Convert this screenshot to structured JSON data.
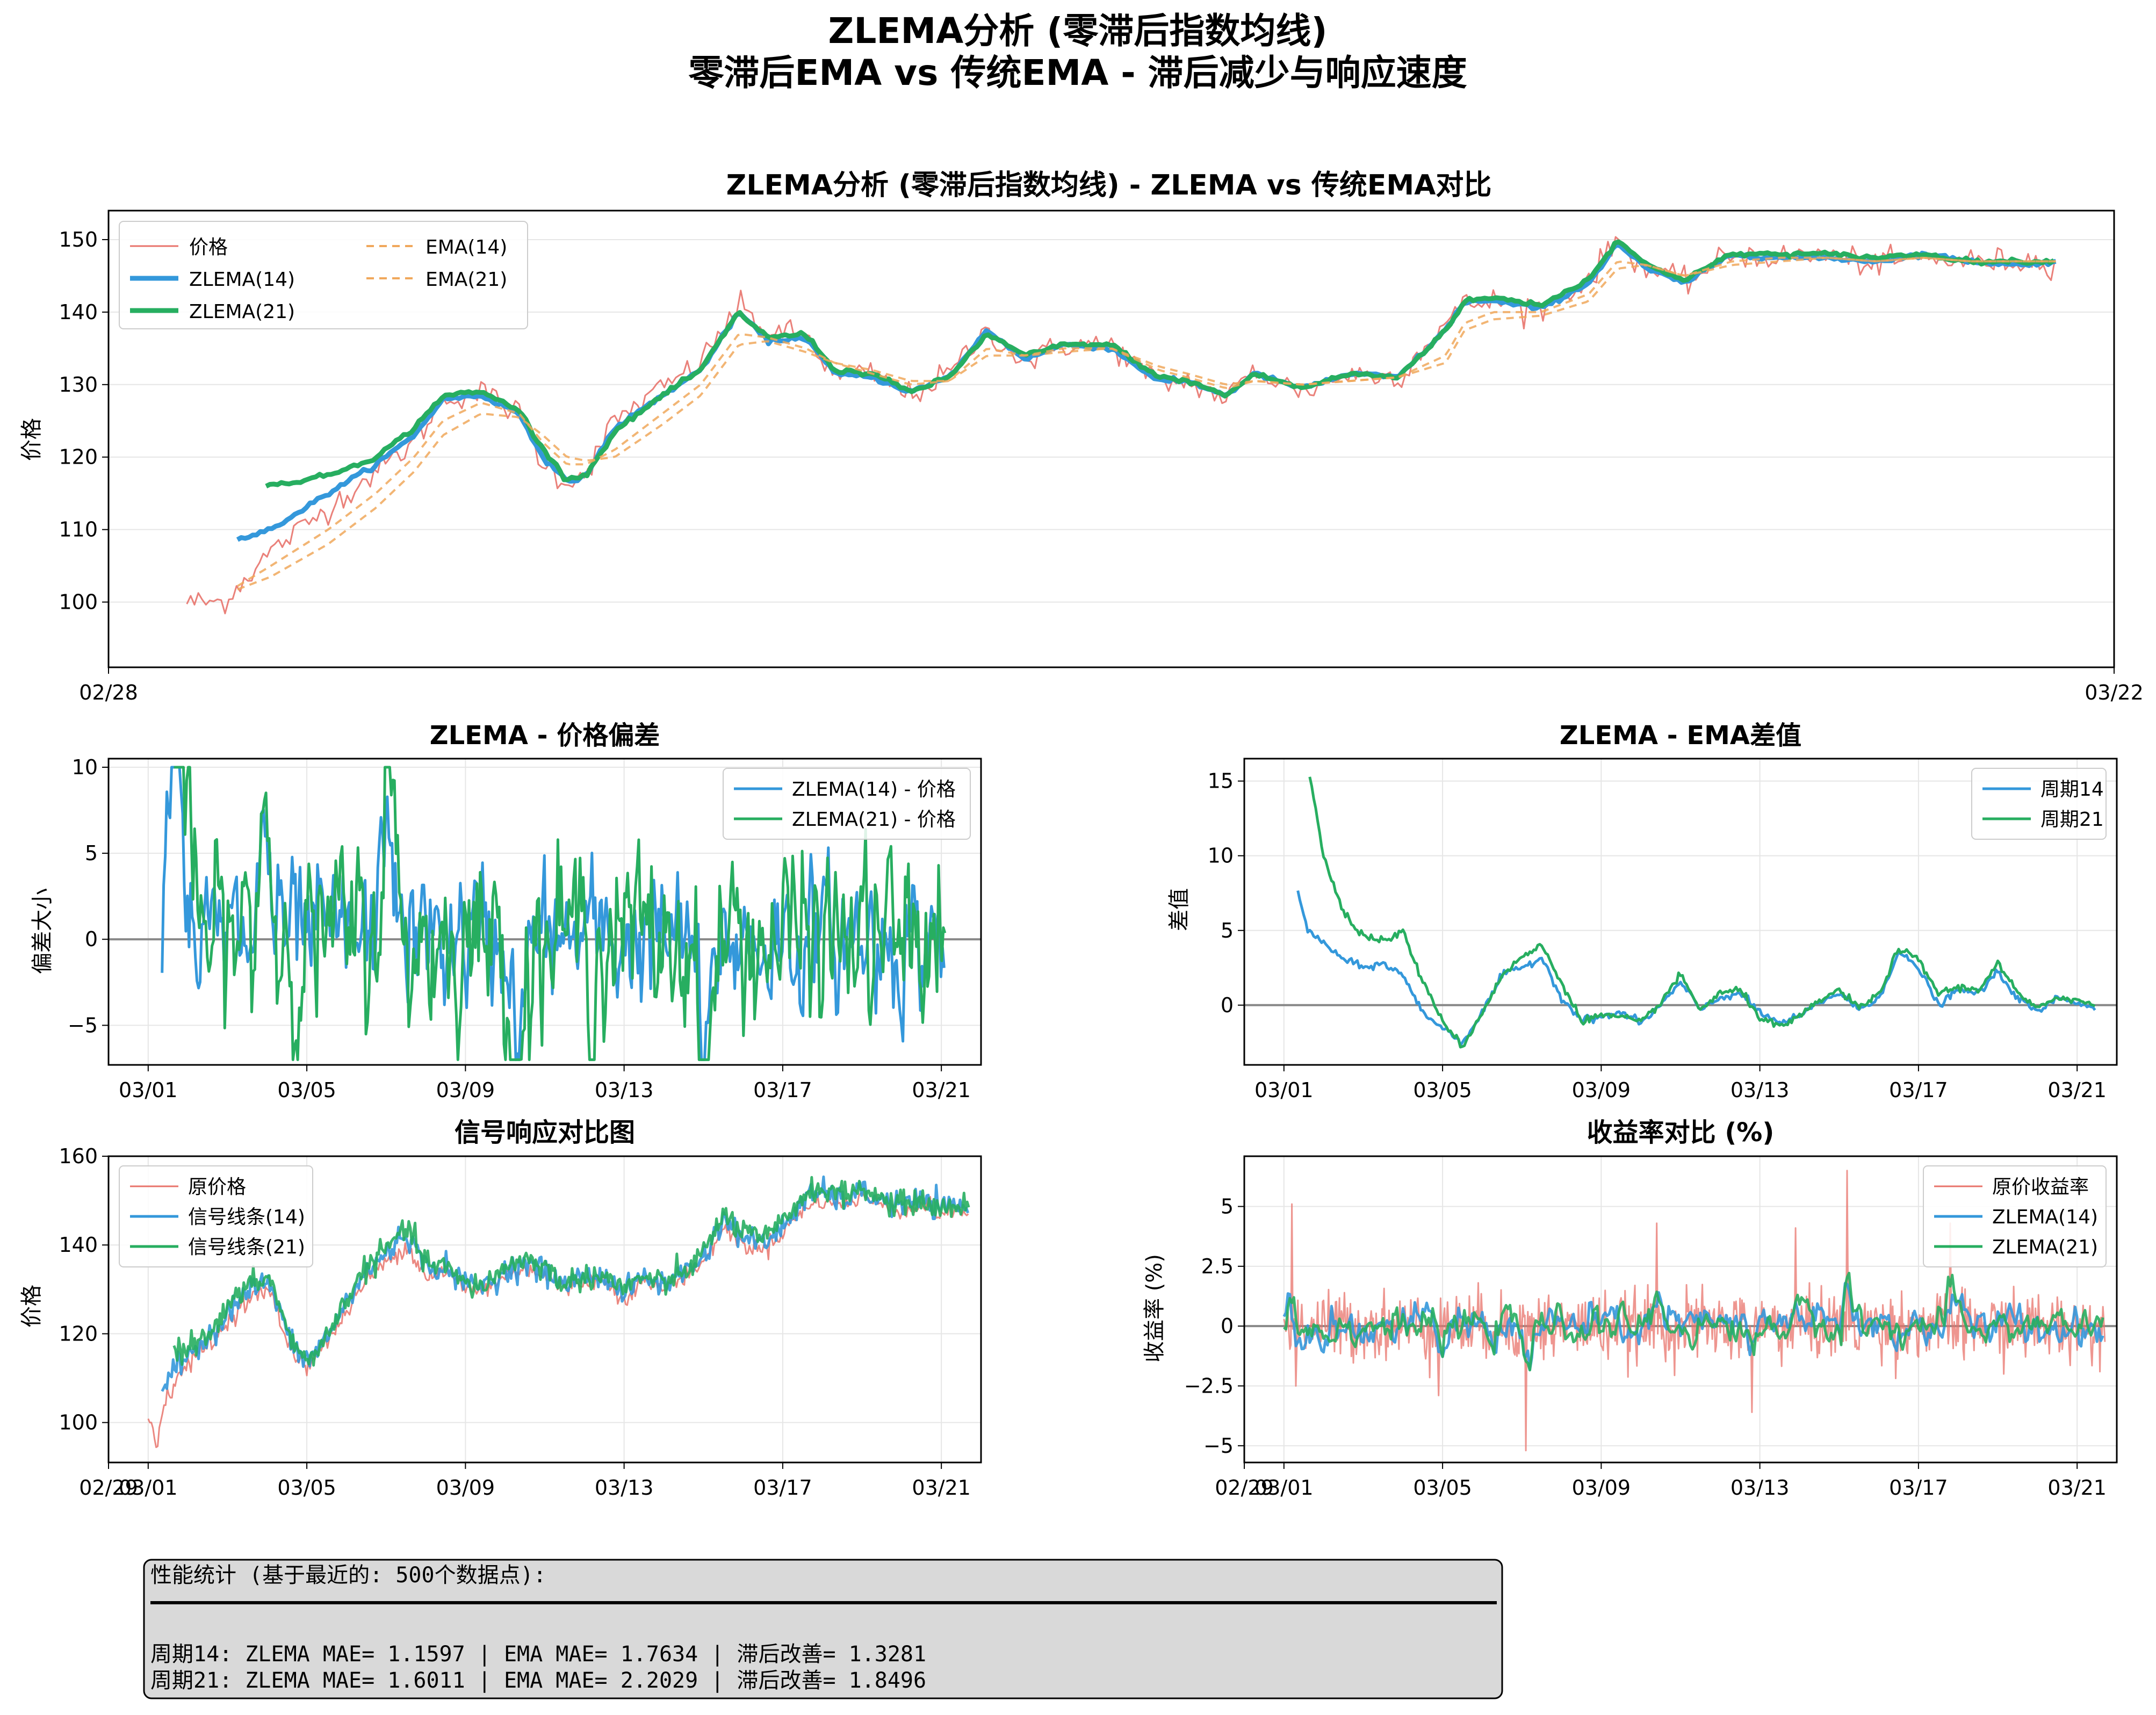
{
  "figure": {
    "title_line1": "ZLEMA分析 (零滞后指数均线)",
    "title_line2": "零滞后EMA vs 传统EMA - 滞后减少与响应速度"
  },
  "colors": {
    "price": "#e8736b",
    "zlema14": "#3498db",
    "zlema21": "#27ae60",
    "ema": "#f0a85c",
    "zero": "#888888",
    "grid": "#e6e6e6",
    "stats_bg": "#d9d9d9"
  },
  "chart_data": [
    {
      "id": "main",
      "type": "line",
      "title": "ZLEMA分析 (零滞后指数均线) - ZLEMA vs 传统EMA对比",
      "ylabel": "价格",
      "xlim": [
        "02/28",
        "03/22"
      ],
      "x_ticks": [
        "02/28",
        "03/22"
      ],
      "ylim": [
        91,
        154
      ],
      "y_ticks": [
        100,
        110,
        120,
        130,
        140,
        150
      ],
      "legend_position": "upper left",
      "anchors_x": [
        0.82,
        1.2,
        1.7,
        2.3,
        2.8,
        3.2,
        3.5,
        3.9,
        4.3,
        4.55,
        4.8,
        5.0,
        5.3,
        5.8,
        6.2,
        6.6,
        6.9,
        7.3,
        7.6,
        8.0,
        8.4,
        8.8,
        9.2,
        9.6,
        10.0,
        10.5,
        11.0,
        11.3,
        11.7,
        12.0,
        12.5,
        13.0,
        13.5,
        14.0,
        14.2,
        14.5,
        15.0,
        15.5,
        15.8,
        16.1,
        16.5,
        17.0,
        17.5,
        18.0,
        18.5,
        19.0,
        19.5,
        20.0,
        20.4
      ],
      "series": [
        {
          "name": "价格",
          "style": "thin",
          "anchors_y": [
            100,
            100,
            107,
            113,
            118,
            122,
            128,
            129,
            126,
            119,
            116.5,
            118,
            125,
            129.5,
            133,
            141,
            137,
            137,
            131,
            131.5,
            128.5,
            131.5,
            137.5,
            133,
            135.5,
            135.5,
            130,
            130.5,
            128,
            132,
            129,
            131.5,
            131,
            138.5,
            141,
            141.5,
            140.5,
            144.5,
            150,
            146,
            144,
            148,
            147.5,
            148,
            146.5,
            147.5,
            147,
            147,
            147
          ]
        },
        {
          "name": "ZLEMA(14)",
          "style": "thick",
          "start": 1.35,
          "anchors_y": [
            108,
            108,
            110,
            115,
            119,
            123,
            128,
            128.5,
            126,
            120,
            116.5,
            117.5,
            124,
            128.5,
            132,
            140,
            136,
            136.5,
            131.5,
            131,
            129,
            131,
            137.5,
            133.5,
            135.5,
            135,
            130.5,
            130.5,
            128.5,
            131.5,
            129.5,
            131.5,
            131,
            137.5,
            141.5,
            141.5,
            140.5,
            144,
            149.5,
            146,
            144,
            148,
            147.5,
            147.5,
            147,
            148,
            147,
            146.5,
            147
          ]
        },
        {
          "name": "ZLEMA(21)",
          "style": "thick",
          "start": 1.65,
          "anchors_y": [
            118,
            118,
            116,
            117.5,
            120,
            124,
            128.5,
            129,
            126.5,
            121,
            117,
            117.5,
            123.5,
            128.5,
            132,
            140,
            136.5,
            137,
            132,
            131.5,
            129,
            131,
            137,
            134,
            135.5,
            135.5,
            131,
            130.5,
            128.5,
            131.5,
            129.5,
            131.5,
            131,
            137.5,
            141.5,
            142,
            141,
            144.5,
            150,
            146.5,
            144.5,
            148,
            148,
            148,
            147.5,
            148,
            147,
            147,
            147
          ]
        },
        {
          "name": "EMA(14)",
          "style": "dashed",
          "start": 1.35,
          "anchors_y": [
            101,
            101,
            105,
            110,
            115,
            120,
            125,
            127.5,
            126,
            122,
            119,
            119,
            121,
            126,
            130,
            137,
            136.5,
            135,
            133,
            131.5,
            130,
            130.5,
            135,
            134,
            135,
            135,
            132,
            131,
            129.5,
            130.5,
            130,
            130.5,
            131,
            134,
            138.5,
            140,
            140,
            142.5,
            147,
            146.5,
            145,
            147,
            147.5,
            147.5,
            147,
            147.5,
            147,
            147,
            147
          ]
        },
        {
          "name": "EMA(21)",
          "style": "dashed",
          "start": 1.35,
          "anchors_y": [
            101,
            101,
            103.5,
            108,
            113,
            118,
            123,
            126,
            125.5,
            123,
            120,
            119.5,
            120,
            124.5,
            128.5,
            135.5,
            136,
            134.5,
            133,
            132,
            130.5,
            130.5,
            134,
            134,
            134.5,
            135,
            132.5,
            131.5,
            130,
            130.5,
            130,
            130.5,
            131,
            133,
            137.5,
            139,
            139.5,
            141.5,
            146,
            146.5,
            145,
            146.5,
            147,
            147.5,
            147,
            147.5,
            147,
            147,
            147
          ]
        }
      ]
    },
    {
      "id": "lag",
      "type": "line",
      "title": "ZLEMA - 价格偏差",
      "ylabel": "偏差大小",
      "xlim": [
        1.0,
        22.0
      ],
      "x_ticks": [
        "03/01",
        "03/05",
        "03/09",
        "03/13",
        "03/17",
        "03/21"
      ],
      "ylim": [
        -7.3,
        10.5
      ],
      "y_ticks": [
        -5,
        0,
        5,
        10
      ],
      "zero_line": true,
      "legend_position": "upper right",
      "series": [
        {
          "name": "ZLEMA(14) - 价格",
          "start": 1.35,
          "amplitude": 1.7
        },
        {
          "name": "ZLEMA(21) - 价格",
          "start": 1.65,
          "amplitude": 2.2
        }
      ],
      "spikes": [
        {
          "x": 1.65,
          "value": 9.5
        },
        {
          "x": 3.9,
          "value": 5.0
        },
        {
          "x": 7.0,
          "value": 6.5
        },
        {
          "x": 10.3,
          "value": -5.2
        },
        {
          "x": 15.0,
          "value": -6.5
        }
      ]
    },
    {
      "id": "diff",
      "type": "line",
      "title": "ZLEMA - EMA差值",
      "ylabel": "差值",
      "xlim": [
        1.0,
        22.0
      ],
      "x_ticks": [
        "03/01",
        "03/05",
        "03/09",
        "03/13",
        "03/17",
        "03/21"
      ],
      "ylim": [
        -4,
        16.5
      ],
      "y_ticks": [
        0,
        5,
        10,
        15
      ],
      "zero_line": true,
      "legend_position": "upper right",
      "series": [
        {
          "name": "周期14",
          "anchors_x": [
            1.35,
            1.6,
            2.0,
            2.4,
            3.0,
            3.5,
            4.0,
            4.5,
            5.0,
            5.5,
            6.0,
            6.5,
            7.0,
            7.5,
            8.0,
            8.5,
            9.0,
            9.5,
            10.0,
            10.5,
            11.0,
            11.5,
            12.0,
            12.5,
            13.0,
            13.5,
            14.0,
            14.5,
            15.0,
            15.5,
            16.0,
            16.5,
            17.0,
            17.5,
            18.0,
            18.5,
            19.0,
            19.5,
            20.0,
            20.5,
            21.0,
            21.5
          ],
          "anchors_y": [
            7.5,
            5.0,
            4.2,
            3.2,
            2.5,
            2.8,
            2.0,
            -0.5,
            -1.5,
            -2.5,
            -0.5,
            2.0,
            2.5,
            3.2,
            0.5,
            -1.0,
            -0.8,
            -0.5,
            -1.2,
            0.0,
            1.5,
            -0.3,
            0.5,
            0.8,
            -0.5,
            -1.2,
            -0.8,
            0.2,
            0.8,
            -0.3,
            0.5,
            3.5,
            2.5,
            0.0,
            1.0,
            0.8,
            2.2,
            0.5,
            -0.5,
            0.5,
            0.2,
            -0.2
          ]
        },
        {
          "name": "周期21",
          "anchors_x": [
            1.65,
            2.0,
            2.4,
            2.8,
            3.2,
            3.6,
            4.0,
            4.5,
            5.0,
            5.5,
            6.0,
            6.5,
            7.0,
            7.5,
            8.0,
            8.5,
            9.0,
            9.5,
            10.0,
            10.5,
            11.0,
            11.5,
            12.0,
            12.5,
            13.0,
            13.5,
            14.0,
            14.5,
            15.0,
            15.5,
            16.0,
            16.5,
            17.0,
            17.5,
            18.0,
            18.5,
            19.0,
            19.5,
            20.0,
            20.5,
            21.0,
            21.5
          ],
          "anchors_y": [
            15.3,
            10.0,
            7.0,
            5.0,
            4.5,
            4.3,
            5.0,
            1.5,
            -1.0,
            -2.8,
            -0.5,
            2.0,
            3.2,
            4.0,
            1.5,
            -1.0,
            -0.7,
            -0.8,
            -1.2,
            0.2,
            2.0,
            -0.3,
            0.8,
            1.0,
            -0.8,
            -1.5,
            -0.8,
            0.3,
            1.0,
            -0.2,
            0.7,
            3.8,
            3.0,
            0.8,
            1.2,
            1.0,
            2.8,
            0.8,
            -0.3,
            0.6,
            0.3,
            0.0
          ]
        }
      ]
    },
    {
      "id": "response",
      "type": "line",
      "title": "信号响应对比图",
      "ylabel": "价格",
      "xlim": [
        0.85,
        22.0
      ],
      "x_ticks": [
        "02/29",
        "03/01",
        "03/05",
        "03/09",
        "03/13",
        "03/17",
        "03/21"
      ],
      "ylim": [
        91,
        160
      ],
      "y_ticks": [
        100,
        120,
        140,
        160
      ],
      "legend_position": "upper left",
      "anchors_x": [
        1.0,
        1.1,
        1.2,
        1.4,
        1.7,
        2.2,
        2.8,
        3.2,
        3.6,
        4.0,
        4.3,
        4.5,
        4.8,
        5.0,
        5.5,
        6.0,
        6.5,
        7.0,
        7.5,
        8.0,
        8.5,
        9.0,
        9.5,
        10.0,
        10.5,
        11.0,
        11.5,
        12.0,
        12.5,
        13.0,
        13.5,
        14.0,
        14.5,
        15.0,
        15.5,
        16.0,
        16.5,
        17.0,
        17.5,
        18.0,
        18.5,
        19.0,
        19.5,
        20.0,
        20.5,
        21.0,
        21.5,
        21.7
      ],
      "series": [
        {
          "name": "原价格",
          "style": "thin",
          "anchors_y": [
            100,
            100,
            95,
            104,
            110,
            115,
            120,
            125,
            128,
            130,
            124,
            118,
            114,
            113,
            118,
            125,
            132,
            136,
            140,
            133,
            134,
            130,
            130,
            133,
            135,
            133,
            130,
            132,
            132,
            128,
            132,
            130,
            133,
            136,
            144,
            140,
            139,
            143,
            148,
            150,
            149,
            151,
            149,
            148,
            149,
            147,
            148,
            147
          ]
        },
        {
          "name": "信号线条(14)",
          "style": "normal",
          "start": 1.35,
          "anchors_y": [
            108,
            108,
            108,
            108,
            112,
            117,
            122,
            127,
            130,
            132,
            126,
            120,
            115,
            114,
            119,
            127,
            134,
            138,
            143,
            135,
            135,
            131,
            131,
            134,
            136,
            134,
            131,
            133,
            133,
            129,
            133,
            131,
            134,
            137,
            146,
            142,
            140,
            144,
            150,
            152,
            150,
            152,
            150,
            149,
            150,
            148,
            149,
            148
          ]
        },
        {
          "name": "信号线条(21)",
          "style": "normal",
          "start": 1.65,
          "anchors_y": [
            116,
            116,
            116,
            116,
            116,
            118,
            123,
            128,
            131,
            133,
            127,
            121,
            115,
            114,
            119,
            128,
            135,
            139,
            144,
            136,
            135,
            131,
            131,
            135,
            137,
            135,
            131,
            133,
            133,
            130,
            133,
            131,
            134,
            138,
            147,
            143,
            141,
            145,
            151,
            153,
            151,
            153,
            150,
            149,
            150,
            148,
            149,
            148
          ]
        }
      ]
    },
    {
      "id": "returns",
      "type": "line",
      "title": "收益率对比 (%)",
      "ylabel": "收益率 (%)",
      "xlim": [
        0.85,
        22.0
      ],
      "x_ticks": [
        "02/29",
        "03/01",
        "03/05",
        "03/09",
        "03/13",
        "03/17",
        "03/21"
      ],
      "ylim": [
        -5.7,
        7.1
      ],
      "y_ticks": [
        -5.0,
        -2.5,
        0.0,
        2.5,
        5.0
      ],
      "zero_line": true,
      "legend_position": "upper right",
      "series": [
        {
          "name": "原价收益率",
          "style": "thin",
          "amplitude": 0.7
        },
        {
          "name": "ZLEMA(14)",
          "style": "normal",
          "amplitude": 0.35
        },
        {
          "name": "ZLEMA(21)",
          "style": "normal",
          "amplitude": 0.28
        }
      ],
      "spikes": [
        {
          "x": 1.2,
          "value": 5.1
        },
        {
          "x": 1.3,
          "value": -2.5
        },
        {
          "x": 4.9,
          "value": -2.9
        },
        {
          "x": 7.1,
          "value": -5.2
        },
        {
          "x": 10.4,
          "value": 4.3
        },
        {
          "x": 12.8,
          "value": -3.6
        },
        {
          "x": 13.9,
          "value": 4.1
        },
        {
          "x": 15.2,
          "value": 6.5
        },
        {
          "x": 17.8,
          "value": 4.3
        }
      ]
    }
  ],
  "stats": {
    "header": "性能统计 (基于最近的: 500个数据点):",
    "line1": "周期14: ZLEMA MAE=  1.1597  |  EMA MAE=  1.7634  |  滞后改善=  1.3281",
    "line2": "周期21: ZLEMA MAE=  1.6011  |  EMA MAE=  2.2029  |  滞后改善=  1.8496"
  }
}
